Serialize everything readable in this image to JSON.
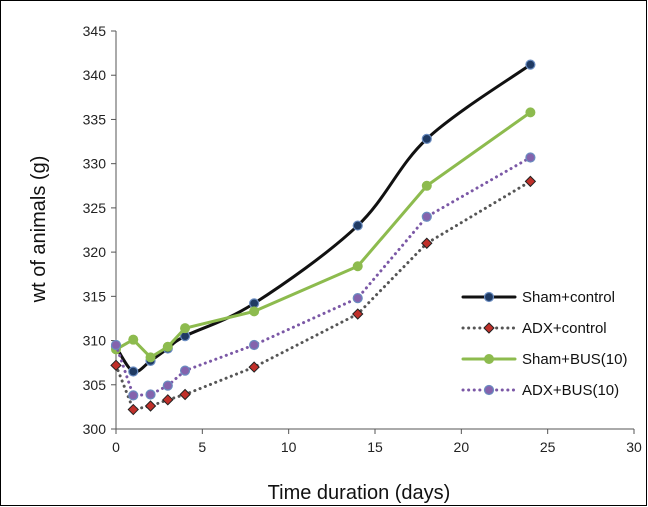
{
  "chart_data": {
    "type": "line",
    "xlabel": "Time duration (days)",
    "ylabel": "wt of animals (g)",
    "xlim": [
      0,
      30
    ],
    "ylim": [
      300,
      345
    ],
    "xticks": [
      0,
      5,
      10,
      15,
      20,
      25,
      30
    ],
    "yticks": [
      300,
      305,
      310,
      315,
      320,
      325,
      330,
      335,
      340,
      345
    ],
    "grid": false,
    "legend_position": "lower-right",
    "series": [
      {
        "name": "Sham+control",
        "line_color": "#111111",
        "marker_color": "#1f3a63",
        "marker": "circle",
        "line_style": "solid",
        "smooth": true,
        "x": [
          0,
          1,
          2,
          3,
          4,
          8,
          14,
          18,
          24
        ],
        "y": [
          309.3,
          306.5,
          307.7,
          309.1,
          310.5,
          314.2,
          323.0,
          332.8,
          341.2
        ]
      },
      {
        "name": "ADX+control",
        "line_color": "#555555",
        "marker_color": "#c0302a",
        "marker": "diamond",
        "line_style": "dotted",
        "smooth": false,
        "x": [
          0,
          1,
          2,
          3,
          4,
          8,
          14,
          18,
          24
        ],
        "y": [
          307.2,
          302.2,
          302.6,
          303.3,
          303.9,
          307.0,
          313.0,
          321.0,
          328.0
        ]
      },
      {
        "name": "Sham+BUS(10)",
        "line_color": "#8dbb4e",
        "marker_color": "#8dbb4e",
        "marker": "circle",
        "line_style": "solid",
        "smooth": false,
        "x": [
          0,
          1,
          2,
          3,
          4,
          8,
          14,
          18,
          24
        ],
        "y": [
          309.0,
          310.1,
          308.1,
          309.3,
          311.4,
          313.3,
          318.4,
          327.5,
          335.8
        ]
      },
      {
        "name": "ADX+BUS(10)",
        "line_color": "#7b58a6",
        "marker_color": "#8463ad",
        "marker": "circle",
        "line_style": "dotted",
        "smooth": false,
        "x": [
          0,
          1,
          2,
          3,
          4,
          8,
          14,
          18,
          24
        ],
        "y": [
          309.5,
          303.8,
          303.9,
          304.9,
          306.6,
          309.5,
          314.8,
          324.0,
          330.7
        ]
      }
    ]
  }
}
